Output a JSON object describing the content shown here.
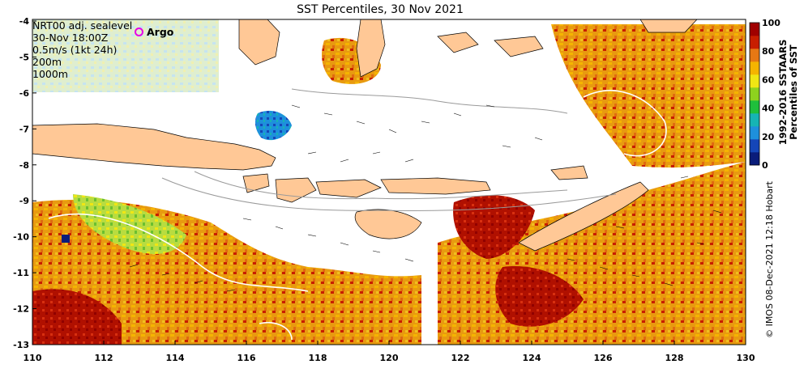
{
  "title": "SST Percentiles, 30 Nov 2021",
  "legend": {
    "lines": [
      "NRT00 adj. sealevel",
      "30-Nov 18:00Z",
      "0.5m/s (1kt 24h)",
      "200m",
      "1000m"
    ],
    "argo_label": "Argo"
  },
  "axes": {
    "lon_ticks": [
      "110",
      "112",
      "114",
      "116",
      "118",
      "120",
      "122",
      "124",
      "126",
      "128",
      "130"
    ],
    "lat_ticks": [
      "-4",
      "-5",
      "-6",
      "-7",
      "-8",
      "-9",
      "-10",
      "-11",
      "-12",
      "-13"
    ]
  },
  "colorbar": {
    "ticks": [
      "0",
      "20",
      "40",
      "60",
      "80",
      "100"
    ],
    "title_line1": "1992-2016 SSTAARS",
    "title_line2": "Percentiles of SST",
    "colors": [
      "#0a1c7a",
      "#1546b8",
      "#1e90dc",
      "#16b4b4",
      "#1fbf3c",
      "#8ed21e",
      "#f0e614",
      "#f5b400",
      "#e67814",
      "#c81e00",
      "#a00000"
    ]
  },
  "credit": "© IMOS 08-Dec-2021 12:18 Hobart"
}
